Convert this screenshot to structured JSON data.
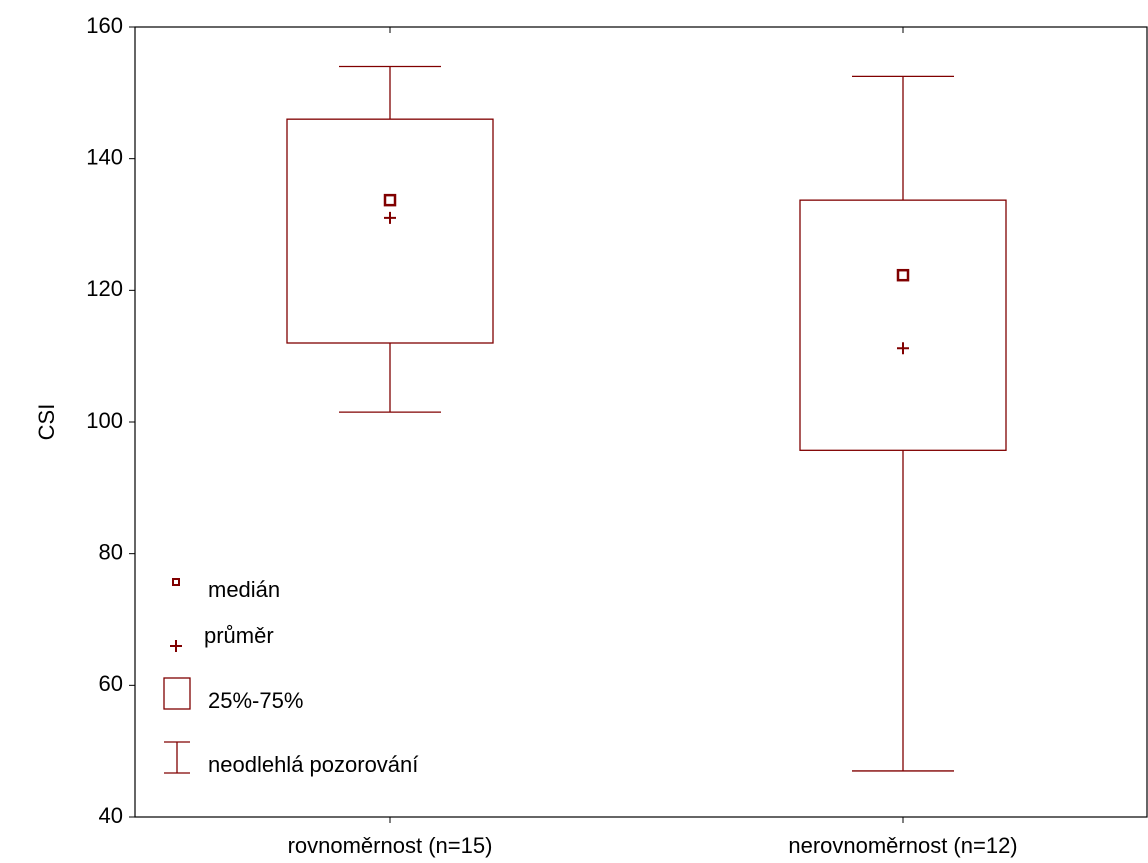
{
  "chart_data": {
    "type": "box",
    "y_label": "CSI",
    "categories": [
      "rovnoměrnost (n=15)",
      "nerovnoměrnost (n=12)"
    ],
    "color": "#800000",
    "whisker_low": [
      101.5,
      47
    ],
    "q1": [
      112,
      95.7
    ],
    "median": [
      133.7,
      122.3
    ],
    "q3": [
      146,
      133.7
    ],
    "whisker_high": [
      154,
      152.5
    ],
    "mean": [
      131,
      111.2
    ],
    "ylim": [
      40,
      160
    ],
    "yticks": [
      40,
      60,
      80,
      100,
      120,
      140,
      160
    ],
    "legend": {
      "median": "medián",
      "mean": "průměr",
      "box": "25%-75%",
      "whisker": "neodlehlá pozorování"
    }
  }
}
